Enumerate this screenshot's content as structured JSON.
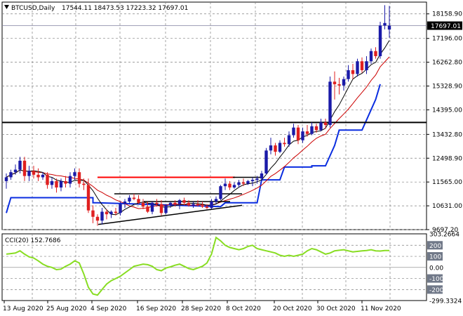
{
  "header": {
    "symbol": "BTCUSD,Daily",
    "ohlc": "17544.11 18473.53 17223.32 17697.01",
    "icon": "chart-triangle-icon"
  },
  "price_labels": [
    "18158.90",
    "17196.00",
    "16262.80",
    "15328.90",
    "14395.00",
    "13432.80",
    "12498.90",
    "11565.00",
    "10631.00",
    "9697.20"
  ],
  "current_price": "17697.01",
  "indicator": {
    "title": "CCI(20) 152.7686",
    "labels": [
      "303.2664",
      "200",
      "100",
      "0.00",
      "-100",
      "-200",
      "-299.3324"
    ]
  },
  "time_labels": [
    "13 Aug 2020",
    "25 Aug 2020",
    "4 Sep 2020",
    "16 Sep 2020",
    "28 Sep 2020",
    "8 Oct 2020",
    "20 Oct 2020",
    "30 Oct 2020",
    "11 Nov 2020"
  ],
  "colors": {
    "bull": "#1a1aa8",
    "bear": "#e02020",
    "ma_fast": "#000000",
    "ma_slow": "#cc0000",
    "support_line": "#0a2de0",
    "cci": "#88dd22",
    "resistance": "#ff0000"
  },
  "chart_data": [
    {
      "type": "candlestick",
      "title": "BTCUSD,Daily",
      "ylim": [
        9697.2,
        18620
      ],
      "y_ticks": [
        18158.9,
        17196.0,
        16262.8,
        15328.9,
        14395.0,
        13432.8,
        12498.9,
        11565.0,
        10631.0,
        9697.2
      ],
      "current_price": 17697.01,
      "horizontal_level": 13900,
      "candles": [
        {
          "o": 11600,
          "h": 11900,
          "l": 11300,
          "c": 11750
        },
        {
          "o": 11750,
          "h": 12050,
          "l": 11650,
          "c": 11950
        },
        {
          "o": 11950,
          "h": 12250,
          "l": 11850,
          "c": 12050
        },
        {
          "o": 12050,
          "h": 12550,
          "l": 11900,
          "c": 12400
        },
        {
          "o": 12400,
          "h": 12550,
          "l": 11600,
          "c": 11800
        },
        {
          "o": 11800,
          "h": 12200,
          "l": 11600,
          "c": 12000
        },
        {
          "o": 12000,
          "h": 12200,
          "l": 11700,
          "c": 11850
        },
        {
          "o": 11850,
          "h": 12100,
          "l": 11600,
          "c": 11750
        },
        {
          "o": 11750,
          "h": 11950,
          "l": 11650,
          "c": 11850
        },
        {
          "o": 11850,
          "h": 11950,
          "l": 11300,
          "c": 11450
        },
        {
          "o": 11450,
          "h": 11750,
          "l": 11300,
          "c": 11600
        },
        {
          "o": 11600,
          "h": 11700,
          "l": 11150,
          "c": 11350
        },
        {
          "o": 11350,
          "h": 11700,
          "l": 11200,
          "c": 11600
        },
        {
          "o": 11600,
          "h": 11800,
          "l": 11350,
          "c": 11500
        },
        {
          "o": 11500,
          "h": 11950,
          "l": 11350,
          "c": 11800
        },
        {
          "o": 11800,
          "h": 12100,
          "l": 11650,
          "c": 11950
        },
        {
          "o": 11950,
          "h": 12100,
          "l": 11350,
          "c": 11500
        },
        {
          "o": 11500,
          "h": 11700,
          "l": 11250,
          "c": 11450
        },
        {
          "o": 11450,
          "h": 11700,
          "l": 10350,
          "c": 10450
        },
        {
          "o": 10450,
          "h": 10650,
          "l": 9950,
          "c": 10200
        },
        {
          "o": 10200,
          "h": 10300,
          "l": 9850,
          "c": 10050
        },
        {
          "o": 10050,
          "h": 10550,
          "l": 9900,
          "c": 10400
        },
        {
          "o": 10400,
          "h": 10500,
          "l": 10100,
          "c": 10300
        },
        {
          "o": 10300,
          "h": 10450,
          "l": 10150,
          "c": 10400
        },
        {
          "o": 10400,
          "h": 10550,
          "l": 10250,
          "c": 10350
        },
        {
          "o": 10350,
          "h": 10800,
          "l": 10250,
          "c": 10700
        },
        {
          "o": 10700,
          "h": 10900,
          "l": 10550,
          "c": 10800
        },
        {
          "o": 10800,
          "h": 11050,
          "l": 10700,
          "c": 10950
        },
        {
          "o": 10950,
          "h": 11100,
          "l": 10850,
          "c": 10900
        },
        {
          "o": 10900,
          "h": 11050,
          "l": 10700,
          "c": 10750
        },
        {
          "o": 10750,
          "h": 10900,
          "l": 10500,
          "c": 10600
        },
        {
          "o": 10600,
          "h": 10800,
          "l": 10350,
          "c": 10400
        },
        {
          "o": 10400,
          "h": 10800,
          "l": 10300,
          "c": 10750
        },
        {
          "o": 10750,
          "h": 10900,
          "l": 10600,
          "c": 10700
        },
        {
          "o": 10700,
          "h": 10850,
          "l": 10250,
          "c": 10350
        },
        {
          "o": 10350,
          "h": 10700,
          "l": 10300,
          "c": 10650
        },
        {
          "o": 10650,
          "h": 10800,
          "l": 10550,
          "c": 10750
        },
        {
          "o": 10750,
          "h": 10850,
          "l": 10600,
          "c": 10700
        },
        {
          "o": 10700,
          "h": 10900,
          "l": 10500,
          "c": 10850
        },
        {
          "o": 10850,
          "h": 10950,
          "l": 10650,
          "c": 10750
        },
        {
          "o": 10750,
          "h": 10850,
          "l": 10600,
          "c": 10650
        },
        {
          "o": 10650,
          "h": 10800,
          "l": 10550,
          "c": 10700
        },
        {
          "o": 10700,
          "h": 10850,
          "l": 10600,
          "c": 10650
        },
        {
          "o": 10650,
          "h": 10800,
          "l": 10550,
          "c": 10600
        },
        {
          "o": 10600,
          "h": 10700,
          "l": 10500,
          "c": 10550
        },
        {
          "o": 10550,
          "h": 10900,
          "l": 10500,
          "c": 10800
        },
        {
          "o": 10800,
          "h": 11000,
          "l": 10700,
          "c": 10900
        },
        {
          "o": 10900,
          "h": 11450,
          "l": 10850,
          "c": 11400
        },
        {
          "o": 11400,
          "h": 11700,
          "l": 11250,
          "c": 11500
        },
        {
          "o": 11500,
          "h": 11600,
          "l": 11250,
          "c": 11350
        },
        {
          "o": 11350,
          "h": 11550,
          "l": 11300,
          "c": 11450
        },
        {
          "o": 11450,
          "h": 11650,
          "l": 11350,
          "c": 11550
        },
        {
          "o": 11550,
          "h": 11700,
          "l": 11400,
          "c": 11500
        },
        {
          "o": 11500,
          "h": 11650,
          "l": 11450,
          "c": 11600
        },
        {
          "o": 11600,
          "h": 11750,
          "l": 11400,
          "c": 11650
        },
        {
          "o": 11650,
          "h": 11800,
          "l": 11500,
          "c": 11700
        },
        {
          "o": 11700,
          "h": 12000,
          "l": 11650,
          "c": 11900
        },
        {
          "o": 11900,
          "h": 12900,
          "l": 11850,
          "c": 12800
        },
        {
          "o": 12800,
          "h": 13300,
          "l": 12650,
          "c": 13000
        },
        {
          "o": 13000,
          "h": 13100,
          "l": 12600,
          "c": 12750
        },
        {
          "o": 12750,
          "h": 13200,
          "l": 12700,
          "c": 13100
        },
        {
          "o": 13100,
          "h": 13300,
          "l": 12950,
          "c": 13050
        },
        {
          "o": 13050,
          "h": 13550,
          "l": 12950,
          "c": 13400
        },
        {
          "o": 13400,
          "h": 13850,
          "l": 13300,
          "c": 13700
        },
        {
          "o": 13700,
          "h": 13800,
          "l": 13050,
          "c": 13200
        },
        {
          "o": 13200,
          "h": 13700,
          "l": 13100,
          "c": 13550
        },
        {
          "o": 13550,
          "h": 13800,
          "l": 13350,
          "c": 13450
        },
        {
          "o": 13450,
          "h": 13900,
          "l": 13400,
          "c": 13750
        },
        {
          "o": 13750,
          "h": 13850,
          "l": 13500,
          "c": 13600
        },
        {
          "o": 13600,
          "h": 14050,
          "l": 13550,
          "c": 13900
        },
        {
          "o": 13900,
          "h": 14050,
          "l": 13650,
          "c": 13800
        },
        {
          "o": 13800,
          "h": 15700,
          "l": 13700,
          "c": 15500
        },
        {
          "o": 15500,
          "h": 15900,
          "l": 14800,
          "c": 15400
        },
        {
          "o": 15400,
          "h": 15650,
          "l": 15000,
          "c": 15350
        },
        {
          "o": 15350,
          "h": 15700,
          "l": 15150,
          "c": 15600
        },
        {
          "o": 15600,
          "h": 16150,
          "l": 15500,
          "c": 15950
        },
        {
          "o": 15950,
          "h": 16200,
          "l": 15600,
          "c": 15800
        },
        {
          "o": 15800,
          "h": 16400,
          "l": 15700,
          "c": 16300
        },
        {
          "o": 16300,
          "h": 16450,
          "l": 15850,
          "c": 15950
        },
        {
          "o": 15950,
          "h": 16500,
          "l": 15800,
          "c": 16300
        },
        {
          "o": 16300,
          "h": 16800,
          "l": 16200,
          "c": 16700
        },
        {
          "o": 16700,
          "h": 16850,
          "l": 16400,
          "c": 16500
        },
        {
          "o": 16500,
          "h": 17850,
          "l": 16400,
          "c": 17700
        },
        {
          "o": 17700,
          "h": 18500,
          "l": 17550,
          "c": 17800
        },
        {
          "o": 17544.11,
          "h": 18473.53,
          "l": 17223.32,
          "c": 17697.01
        }
      ],
      "cci": {
        "title": "CCI(20) 152.7686",
        "value": 152.7686,
        "ylim": [
          -299.3324,
          303.2664
        ],
        "levels": [
          200,
          100,
          0,
          -100,
          -200
        ]
      }
    }
  ]
}
